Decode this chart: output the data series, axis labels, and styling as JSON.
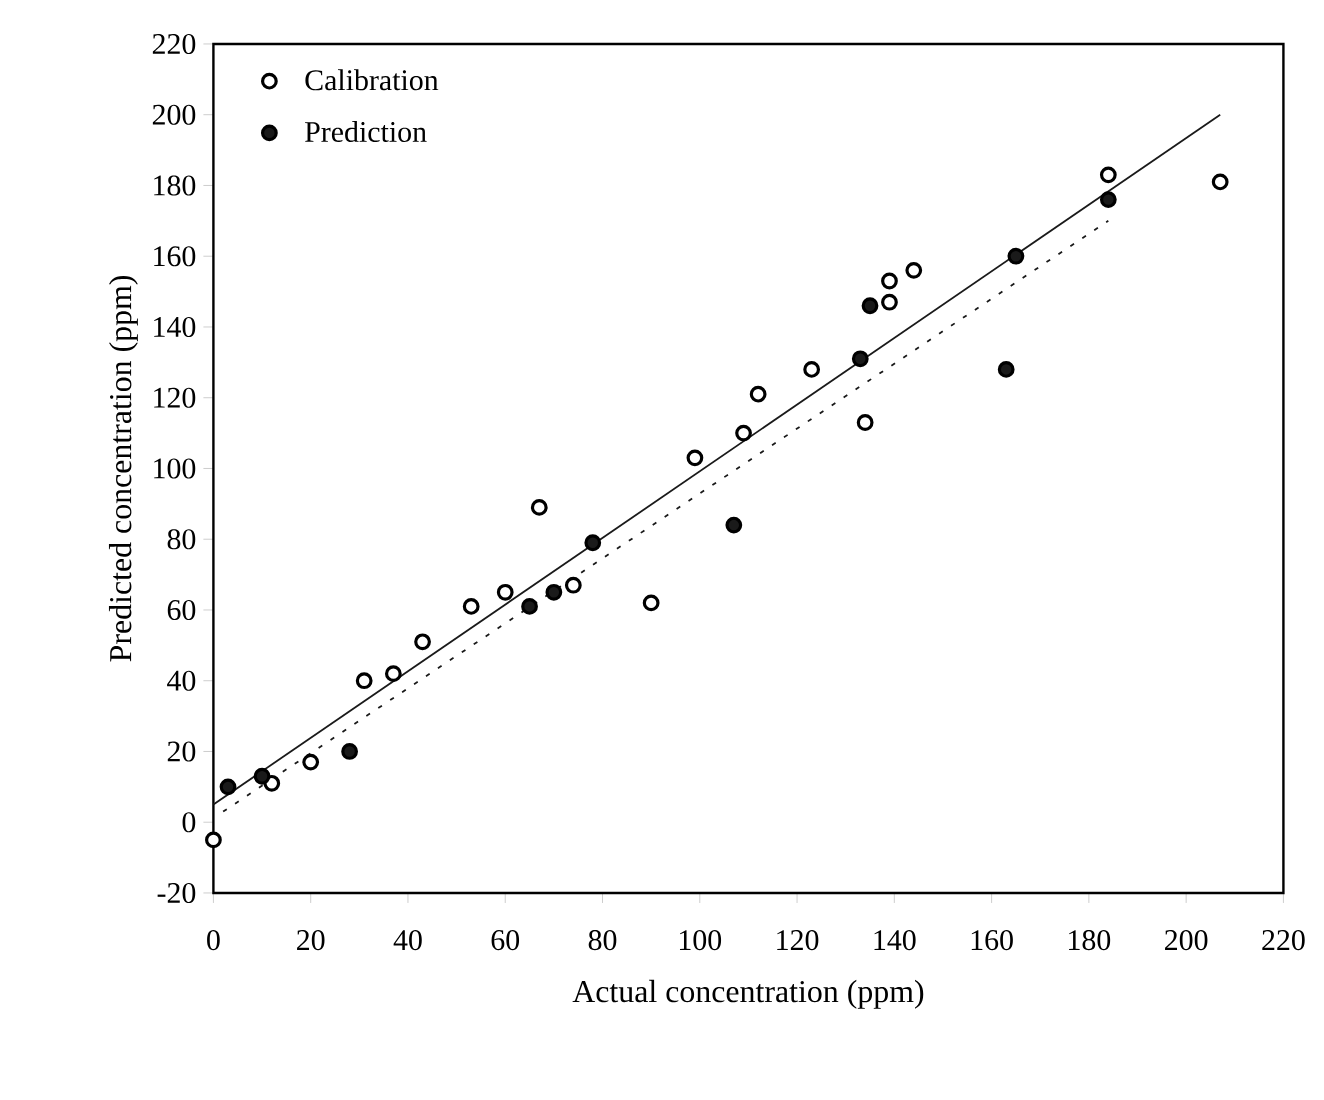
{
  "chart_data": {
    "type": "scatter",
    "xlabel": "Actual concentration (ppm)",
    "ylabel": "Predicted concentration (ppm)",
    "xlim": [
      0,
      220
    ],
    "ylim": [
      -20,
      220
    ],
    "xticks": [
      0,
      20,
      40,
      60,
      80,
      100,
      120,
      140,
      160,
      180,
      200,
      220
    ],
    "yticks": [
      -20,
      0,
      20,
      40,
      60,
      80,
      100,
      120,
      140,
      160,
      180,
      200,
      220
    ],
    "grid": false,
    "legend": "top left",
    "series": [
      {
        "name": "Calibration",
        "color": "#ffffff",
        "marker": "circle",
        "x": [
          0,
          12,
          20,
          31,
          37,
          43,
          53,
          60,
          67,
          74,
          90,
          99,
          109,
          112,
          123,
          134,
          139,
          139,
          144,
          184,
          207
        ],
        "values": [
          -5,
          11,
          17,
          40,
          42,
          51,
          61,
          65,
          89,
          67,
          62,
          103,
          110,
          121,
          128,
          113,
          147,
          153,
          156,
          183,
          181
        ]
      },
      {
        "name": "Prediction",
        "color": "#1a1a1a",
        "marker": "circle",
        "x": [
          3,
          10,
          28,
          65,
          70,
          78,
          107,
          133,
          135,
          163,
          165,
          184
        ],
        "values": [
          10,
          13,
          20,
          61,
          65,
          79,
          84,
          131,
          146,
          128,
          160,
          176
        ]
      },
      {
        "type": "line",
        "color": "#1a1a1a",
        "line_style": "solid",
        "marker": "none",
        "x": [
          0,
          207
        ],
        "values": [
          5,
          200
        ]
      },
      {
        "type": "line",
        "color": "#1a1a1a",
        "line_style": "dotted",
        "marker": "none",
        "x": [
          2,
          184
        ],
        "values": [
          3,
          170
        ]
      }
    ]
  }
}
